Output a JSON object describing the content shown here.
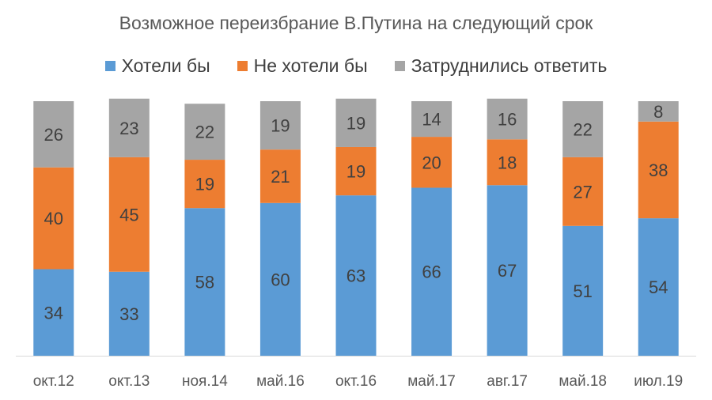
{
  "chart_data": {
    "type": "bar",
    "stacked": true,
    "title": "Возможное переизбрание В.Путина на следующий срок",
    "categories": [
      "окт.12",
      "окт.13",
      "ноя.14",
      "май.16",
      "окт.16",
      "май.17",
      "авг.17",
      "май.18",
      "июл.19"
    ],
    "series": [
      {
        "name": "Хотели бы",
        "color": "#5b9bd5",
        "values": [
          34,
          33,
          58,
          60,
          63,
          66,
          67,
          51,
          54
        ]
      },
      {
        "name": "Не хотели бы",
        "color": "#ed7d31",
        "values": [
          40,
          45,
          19,
          21,
          19,
          20,
          18,
          27,
          38
        ]
      },
      {
        "name": "Затруднились ответить",
        "color": "#a5a5a5",
        "values": [
          26,
          23,
          22,
          19,
          19,
          14,
          16,
          22,
          8
        ]
      }
    ],
    "ylim": [
      0,
      100
    ],
    "legend_position": "top",
    "grid": false
  }
}
